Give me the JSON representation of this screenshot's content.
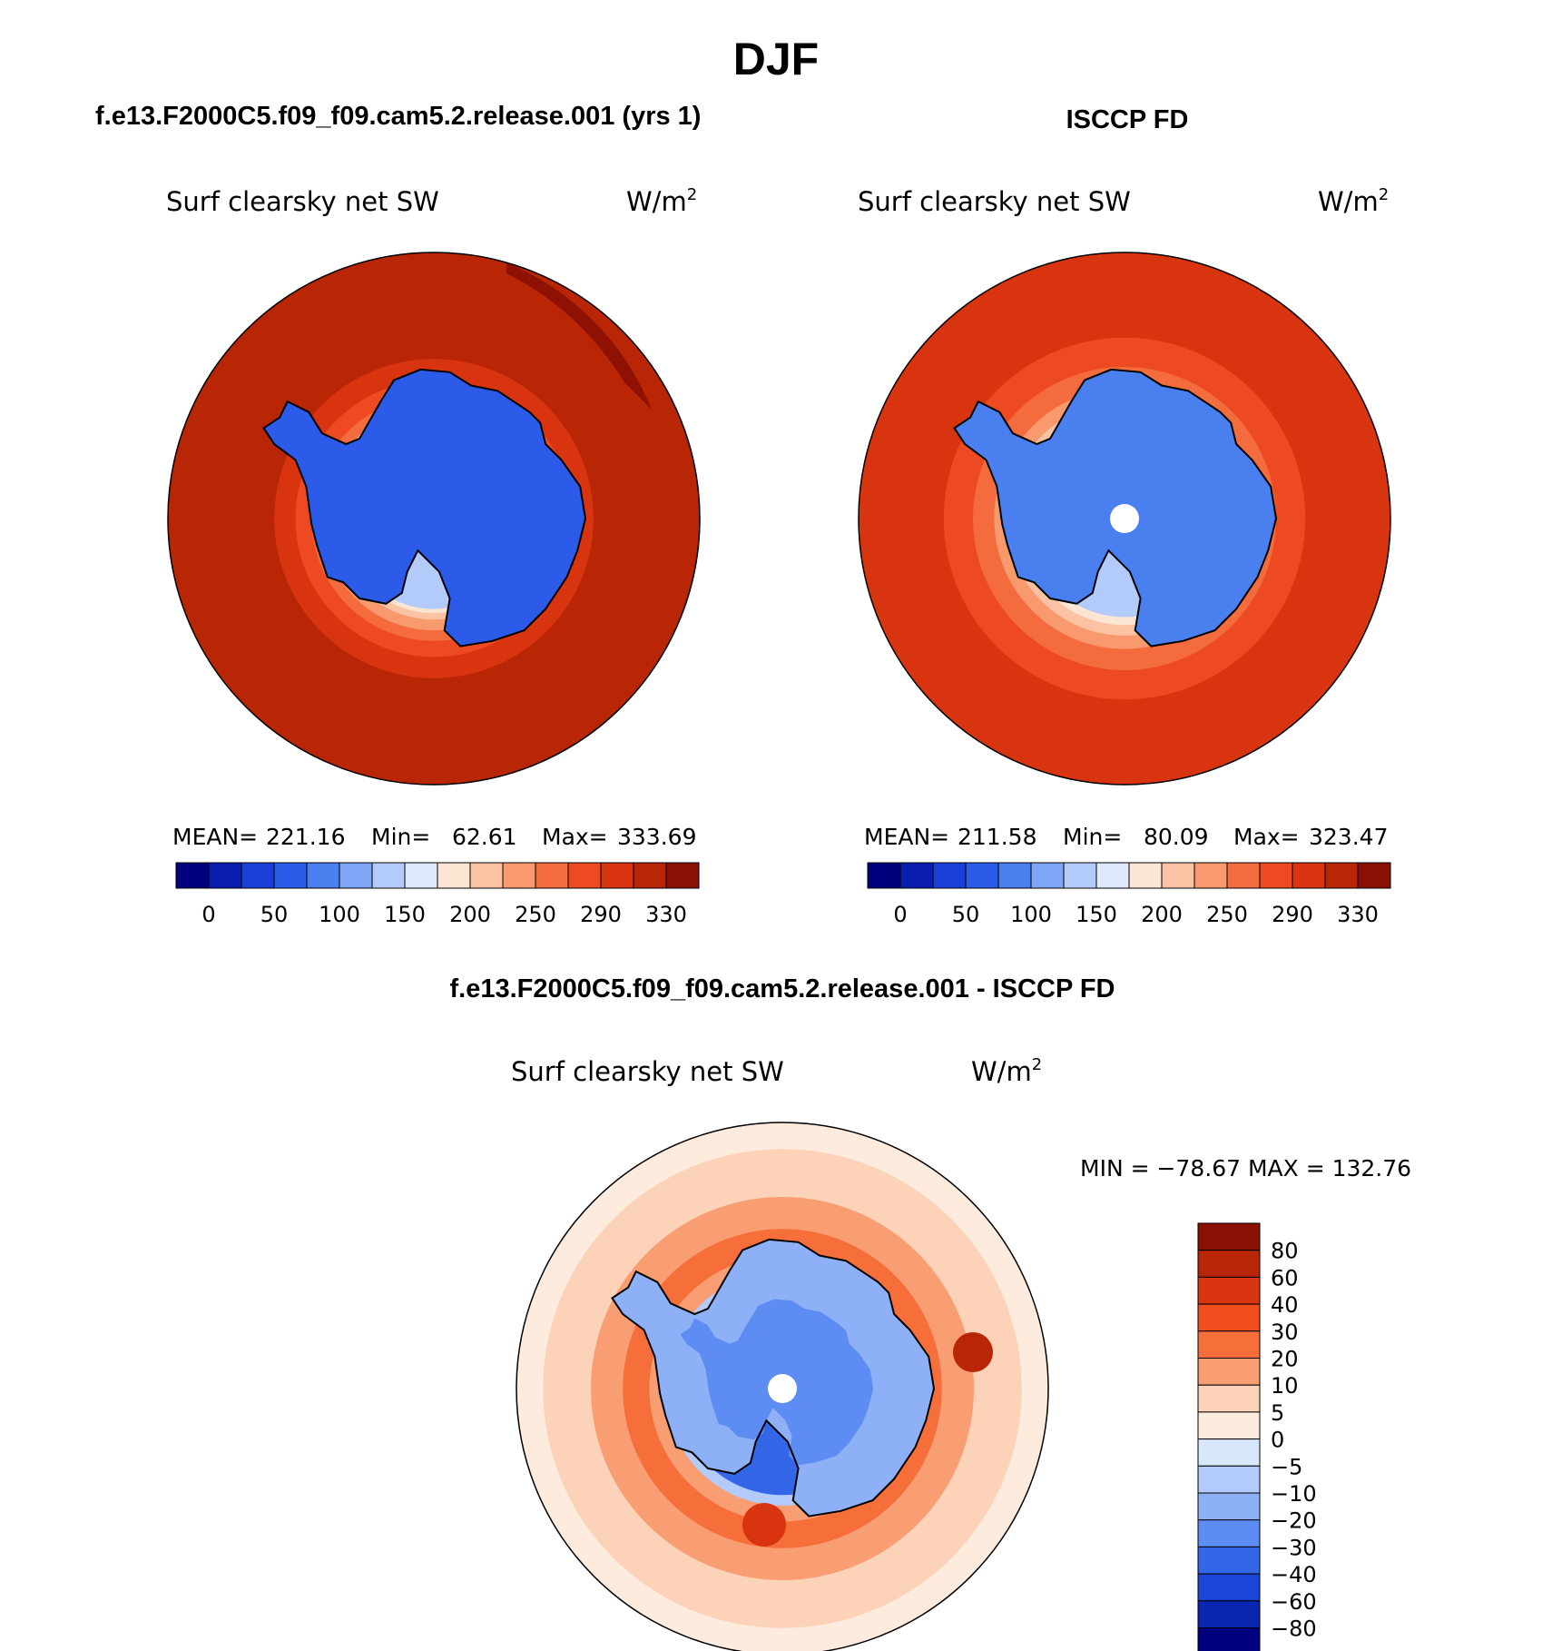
{
  "chart_data": [
    {
      "type": "heatmap",
      "projection": "south-polar-stereographic",
      "season": "DJF",
      "header": "f.e13.F2000C5.f09_f09.cam5.2.release.001 (yrs 1)",
      "variable": "Surf clearsky net SW",
      "units": "W/m",
      "units_sup": "2",
      "stats": {
        "mean_label": "MEAN=",
        "mean": "221.16",
        "min_label": "Min=",
        "min": "62.61",
        "max_label": "Max=",
        "max": "333.69"
      },
      "levels": [
        "0",
        "50",
        "100",
        "150",
        "200",
        "250",
        "290",
        "330"
      ],
      "colors": [
        "#00007f",
        "#0a1fb0",
        "#1a3fd6",
        "#2b5be8",
        "#4a7ff0",
        "#7fa6f6",
        "#b3cbfa",
        "#deeafc",
        "#fde5d3",
        "#fbc3a4",
        "#f89a6e",
        "#f46b3d",
        "#ee4a22",
        "#d83410",
        "#b82606",
        "#8a1003"
      ],
      "ocean_bands": [
        {
          "r": 1.0,
          "color": "#b82606"
        },
        {
          "r": 0.6,
          "color": "#d83410"
        },
        {
          "r": 0.52,
          "color": "#ee4a22"
        },
        {
          "r": 0.46,
          "color": "#f46b3d"
        },
        {
          "r": 0.42,
          "color": "#f89a6e"
        },
        {
          "r": 0.38,
          "color": "#fbc3a4"
        },
        {
          "r": 0.355,
          "color": "#fde5d3"
        },
        {
          "r": 0.34,
          "color": "#b3cbfa"
        }
      ],
      "continent_color": "#2b5be8"
    },
    {
      "type": "heatmap",
      "projection": "south-polar-stereographic",
      "header": "ISCCP FD",
      "variable": "Surf clearsky net SW",
      "units": "W/m",
      "units_sup": "2",
      "stats": {
        "mean_label": "MEAN=",
        "mean": "211.58",
        "min_label": "Min=",
        "min": "80.09",
        "max_label": "Max=",
        "max": "323.47"
      },
      "levels": [
        "0",
        "50",
        "100",
        "150",
        "200",
        "250",
        "290",
        "330"
      ],
      "colors": [
        "#00007f",
        "#0a1fb0",
        "#1a3fd6",
        "#2b5be8",
        "#4a7ff0",
        "#7fa6f6",
        "#b3cbfa",
        "#deeafc",
        "#fde5d3",
        "#fbc3a4",
        "#f89a6e",
        "#f46b3d",
        "#ee4a22",
        "#d83410",
        "#b82606",
        "#8a1003"
      ],
      "ocean_bands": [
        {
          "r": 1.0,
          "color": "#d83410"
        },
        {
          "r": 0.68,
          "color": "#ee4a22"
        },
        {
          "r": 0.57,
          "color": "#f46b3d"
        },
        {
          "r": 0.49,
          "color": "#f89a6e"
        },
        {
          "r": 0.44,
          "color": "#fbc3a4"
        },
        {
          "r": 0.4,
          "color": "#fde5d3"
        },
        {
          "r": 0.37,
          "color": "#b3cbfa"
        }
      ],
      "continent_color": "#4a7ff0",
      "missing_pole": true
    },
    {
      "type": "heatmap",
      "projection": "south-polar-stereographic",
      "header": "f.e13.F2000C5.f09_f09.cam5.2.release.001 - ISCCP FD",
      "variable": "Surf clearsky net SW",
      "units": "W/m",
      "units_sup": "2",
      "stats_text": "MIN = −78.67 MAX = 132.76",
      "levels": [
        "80",
        "60",
        "40",
        "30",
        "20",
        "10",
        "5",
        "0",
        "−5",
        "−10",
        "−20",
        "−30",
        "−40",
        "−60",
        "−80"
      ],
      "colors": [
        "#8a1003",
        "#b82606",
        "#d83410",
        "#f24d1e",
        "#f66f3a",
        "#f99d72",
        "#fcd2b8",
        "#fdebdd",
        "#d8e8fc",
        "#b3cbfa",
        "#8eb0f7",
        "#5d8cf2",
        "#3466e8",
        "#1a45d6",
        "#0a26b0",
        "#00007f"
      ],
      "ocean_bands": [
        {
          "r": 1.0,
          "color": "#fdebdd"
        },
        {
          "r": 0.9,
          "color": "#fcd2b8"
        },
        {
          "r": 0.72,
          "color": "#f99d72"
        },
        {
          "r": 0.6,
          "color": "#f66f3a"
        },
        {
          "r": 0.5,
          "color": "#f99d72"
        },
        {
          "r": 0.44,
          "color": "#b3cbfa"
        },
        {
          "r": 0.4,
          "color": "#3466e8"
        }
      ],
      "continent_color": "#8eb0f7",
      "missing_pole": true
    }
  ],
  "figure": {
    "title": "DJF"
  }
}
